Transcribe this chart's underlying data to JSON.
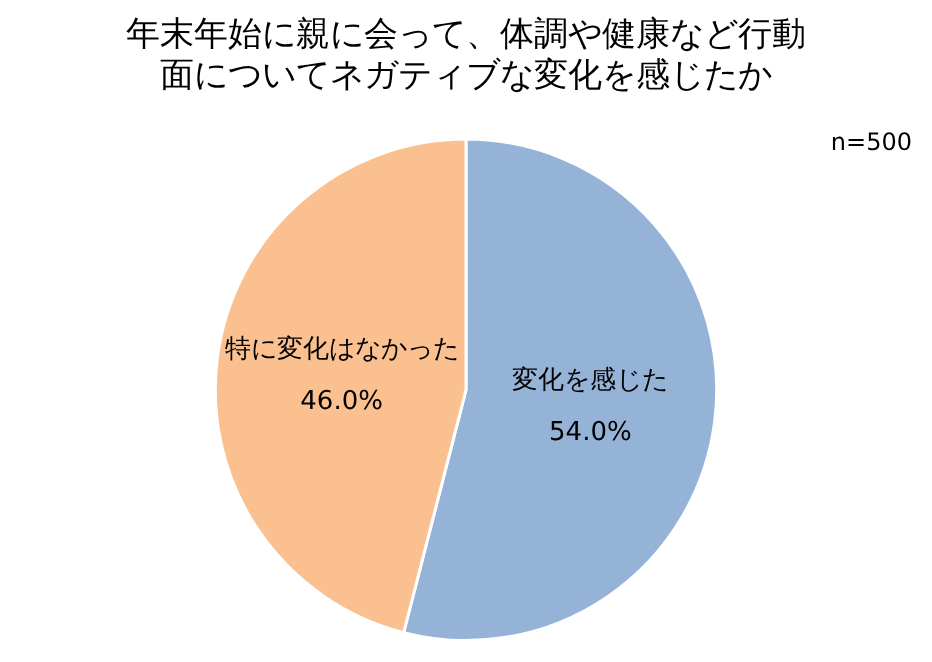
{
  "chart_data": {
    "type": "pie",
    "title": "年末年始に親に会って、体調や健康など行動面についてネガティブな変化を感じたか",
    "categories": [
      "変化を感じた",
      "特に変化はなかった"
    ],
    "values": [
      54.0,
      46.0
    ],
    "value_labels": [
      "54.0%",
      "46.0%"
    ],
    "colors": [
      "#95b3d7",
      "#fac090"
    ],
    "annotations": [
      "n=500"
    ],
    "legend": false
  }
}
